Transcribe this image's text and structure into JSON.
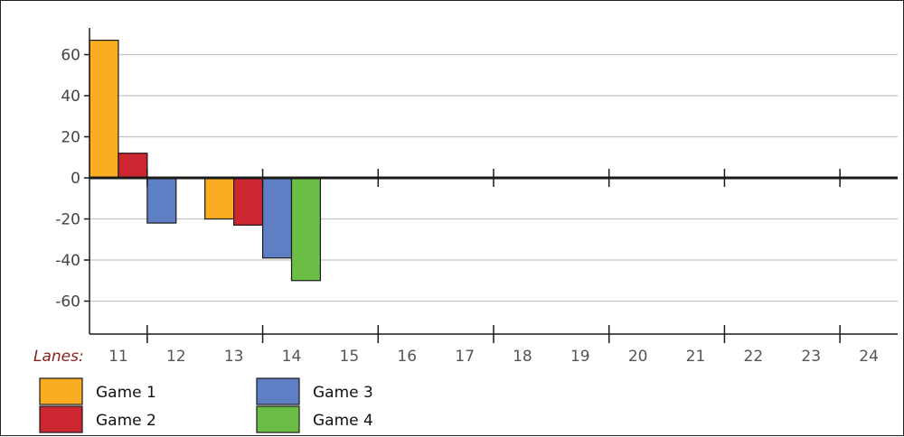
{
  "chart_data": {
    "type": "bar",
    "title": "",
    "xlabel": "Lanes:",
    "ylabel": "",
    "ylim": [
      -72,
      75
    ],
    "y_ticks": [
      60,
      40,
      20,
      0,
      -20,
      -40,
      -60
    ],
    "x_tick_labels": [
      "11",
      "12",
      "13",
      "14",
      "15",
      "16",
      "17",
      "18",
      "19",
      "20",
      "21",
      "22",
      "23",
      "24"
    ],
    "grid": "horizontal",
    "legend_position": "bottom-left",
    "series": [
      {
        "name": "Game 1",
        "color": "#fbad22",
        "lanes": [
          "11",
          "13"
        ],
        "values": [
          67,
          -20
        ]
      },
      {
        "name": "Game 2",
        "color": "#cc2630",
        "lanes": [
          "11",
          "13"
        ],
        "values": [
          12,
          -23
        ]
      },
      {
        "name": "Game 3",
        "color": "#5e7fc4",
        "lanes": [
          "12",
          "14"
        ],
        "values": [
          -22,
          -39
        ]
      },
      {
        "name": "Game 4",
        "color": "#6abd45",
        "lanes": [
          "14"
        ],
        "values": [
          -50
        ]
      }
    ]
  }
}
